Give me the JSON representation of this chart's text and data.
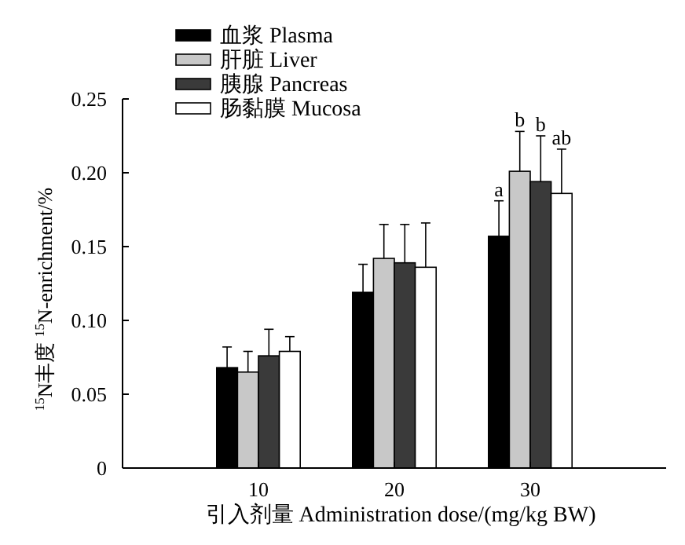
{
  "chart_data": {
    "type": "bar",
    "xlabel": "引入剂量  Administration dose/(mg/kg BW)",
    "ylabel": "$^{15}$N丰度  $^{15}$N-enrichment/%",
    "categories": [
      "10",
      "20",
      "30"
    ],
    "series": [
      {
        "name": "血浆  Plasma",
        "color": "#000000",
        "values": [
          0.068,
          0.119,
          0.157
        ],
        "errors": [
          [
            0.068,
            0.082
          ],
          [
            0.119,
            0.138
          ],
          [
            0.157,
            0.181
          ]
        ]
      },
      {
        "name": "肝脏  Liver",
        "color": "#c8c8c8",
        "values": [
          0.065,
          0.142,
          0.201
        ],
        "errors": [
          [
            0.065,
            0.079
          ],
          [
            0.142,
            0.165
          ],
          [
            0.201,
            0.228
          ]
        ]
      },
      {
        "name": "胰腺  Pancreas",
        "color": "#3a3a3a",
        "values": [
          0.076,
          0.139,
          0.194
        ],
        "errors": [
          [
            0.076,
            0.094
          ],
          [
            0.139,
            0.165
          ],
          [
            0.194,
            0.225
          ]
        ]
      },
      {
        "name": "肠黏膜  Mucosa",
        "color": "#ffffff",
        "values": [
          0.079,
          0.136,
          0.186
        ],
        "errors": [
          [
            0.079,
            0.089
          ],
          [
            0.136,
            0.166
          ],
          [
            0.186,
            0.216
          ]
        ]
      }
    ],
    "ylim": [
      0,
      0.25
    ],
    "yticks": [
      0,
      0.05,
      {
        "value": 0.1,
        "label": "0.10"
      },
      0.15,
      {
        "value": 0.2,
        "label": "0.20"
      },
      0.25
    ],
    "legend": "top left",
    "annotations": [
      {
        "text": "a",
        "x": "30",
        "y": 0.181
      },
      {
        "text": "b",
        "x": "30",
        "y": 0.228
      },
      {
        "text": "b",
        "x": "30",
        "y": 0.225
      },
      {
        "text": "ab",
        "x": "30",
        "y": 0.186
      }
    ]
  }
}
